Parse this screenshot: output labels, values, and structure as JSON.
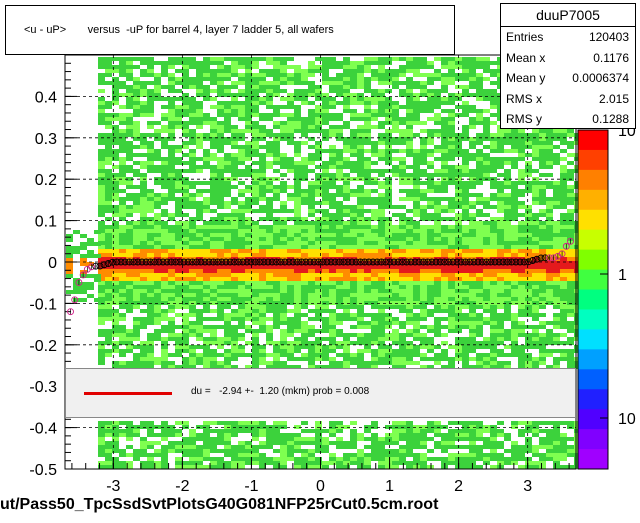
{
  "chart_data": {
    "type": "scatter",
    "title": "<u - uP>       versus  -uP for barrel 4, layer 7 ladder 5, all wafers",
    "xlim": [
      -3.7,
      3.7
    ],
    "ylim": [
      -0.5,
      0.5
    ],
    "x_ticks": [
      "-3",
      "-2",
      "-1",
      "0",
      "1",
      "2",
      "3"
    ],
    "y_ticks": [
      "-0.5",
      "-0.4",
      "-0.3",
      "-0.2",
      "-0.1",
      "0",
      "0.1",
      "0.2",
      "0.3",
      "0.4"
    ],
    "z_ticks": [
      "10",
      "1",
      "10"
    ],
    "profile_points": {
      "x": [
        -3.6,
        -3.5,
        -3.4,
        -3.3,
        -3.2,
        -3.0,
        -2.8,
        -2.6,
        -2.4,
        -2.2,
        -2.0,
        -1.8,
        -1.6,
        -1.4,
        -1.2,
        -1.0,
        -0.8,
        -0.6,
        -0.4,
        -0.2,
        0.0,
        0.2,
        0.4,
        0.6,
        0.8,
        1.0,
        1.2,
        1.4,
        1.6,
        1.8,
        2.0,
        2.2,
        2.4,
        2.6,
        2.8,
        3.0,
        3.2,
        3.4,
        3.5,
        3.6
      ],
      "y": [
        -0.12,
        -0.05,
        -0.02,
        -0.01,
        -0.01,
        0.0,
        0.0,
        0.0,
        0.0,
        0.0,
        0.0,
        0.0,
        0.0,
        0.0,
        0.0,
        0.0,
        0.0,
        0.0,
        0.0,
        0.0,
        0.0,
        0.0,
        0.0,
        0.0,
        0.0,
        0.0,
        0.0,
        0.0,
        0.0,
        0.0,
        0.0,
        0.0,
        0.0,
        0.0,
        0.0,
        0.0,
        0.01,
        0.01,
        0.02,
        0.05
      ]
    }
  },
  "stats": {
    "name": "duuP7005",
    "rows": [
      {
        "label": "Entries",
        "value": "120403"
      },
      {
        "label": "Mean x",
        "value": "0.1176"
      },
      {
        "label": "Mean y",
        "value": "0.0006374"
      },
      {
        "label": "RMS x",
        "value": "2.015"
      },
      {
        "label": "RMS y",
        "value": "0.1288"
      }
    ]
  },
  "fit": {
    "text": "du =   -2.94 +-  1.20 (mkm) prob = 0.008"
  },
  "footer": "ut/Pass50_TpcSsdSvtPlotsG40G081NFP25rCut0.5cm.root",
  "colors": {
    "band_red": "#e41a1c",
    "band_orange": "#ff8c00",
    "band_yellow": "#ffe000",
    "background_green": "#3cd23c",
    "light_green": "#7fff50",
    "fit_line": "#e00000"
  }
}
